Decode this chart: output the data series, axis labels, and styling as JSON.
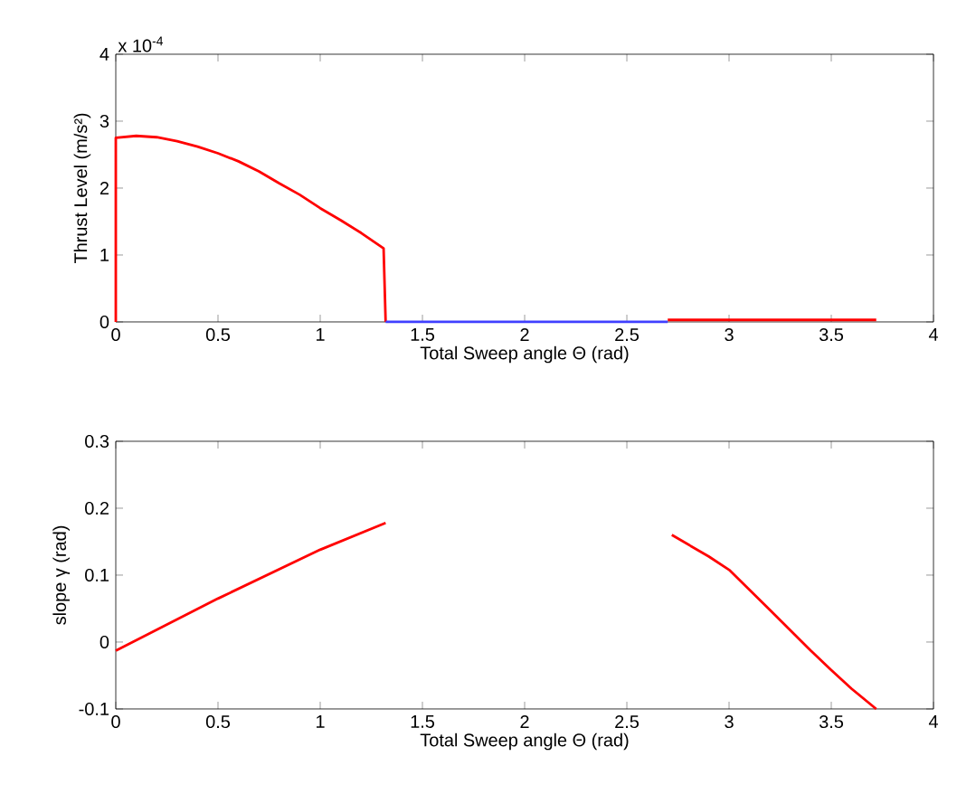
{
  "chart_data": [
    {
      "type": "line",
      "xlabel": "Total Sweep angle Θ (rad)",
      "ylabel": "Thrust Level (m/s²)",
      "annotations": [
        "x 10$^{-4}$"
      ],
      "xlim": [
        0,
        4
      ],
      "xticks": [
        0,
        0.5,
        1,
        1.5,
        2,
        2.5,
        3,
        3.5,
        4
      ],
      "ylim": [
        0,
        4
      ],
      "yticks": [
        0,
        1,
        2,
        3,
        4
      ],
      "grid": false,
      "marker": "none",
      "line_style": "solid",
      "series": [
        {
          "color": "#ff0000",
          "x": [
            0,
            0,
            0.1,
            0.2,
            0.3,
            0.4,
            0.5,
            0.6,
            0.7,
            0.8,
            0.9,
            1.0,
            1.1,
            1.2,
            1.31,
            1.32
          ],
          "values": [
            0,
            2.75,
            2.78,
            2.76,
            2.7,
            2.62,
            2.52,
            2.4,
            2.25,
            2.07,
            1.9,
            1.7,
            1.52,
            1.33,
            1.1,
            0
          ]
        },
        {
          "color": "#4040ff",
          "x": [
            1.32,
            2.7
          ],
          "values": [
            0,
            0
          ]
        },
        {
          "color": "#ff0000",
          "x": [
            2.7,
            3.72
          ],
          "values": [
            0.03,
            0.03
          ]
        }
      ]
    },
    {
      "type": "line",
      "xlabel": "Total Sweep angle Θ (rad)",
      "ylabel": "slope γ (rad)",
      "xlim": [
        0,
        4
      ],
      "xticks": [
        0,
        0.5,
        1,
        1.5,
        2,
        2.5,
        3,
        3.5,
        4
      ],
      "ylim": [
        -0.1,
        0.3
      ],
      "yticks": [
        -0.1,
        0,
        0.1,
        0.2,
        0.3
      ],
      "grid": false,
      "marker": "none",
      "line_style": "solid",
      "series": [
        {
          "color": "#ff0000",
          "x": [
            0,
            0.5,
            1.0,
            1.32
          ],
          "values": [
            -0.013,
            0.065,
            0.138,
            0.178
          ]
        },
        {
          "color": "#ff0000",
          "x": [
            2.72,
            2.9,
            3.0,
            3.2,
            3.4,
            3.5,
            3.6,
            3.72
          ],
          "values": [
            0.16,
            0.128,
            0.108,
            0.048,
            -0.013,
            -0.042,
            -0.07,
            -0.1
          ]
        }
      ]
    }
  ]
}
